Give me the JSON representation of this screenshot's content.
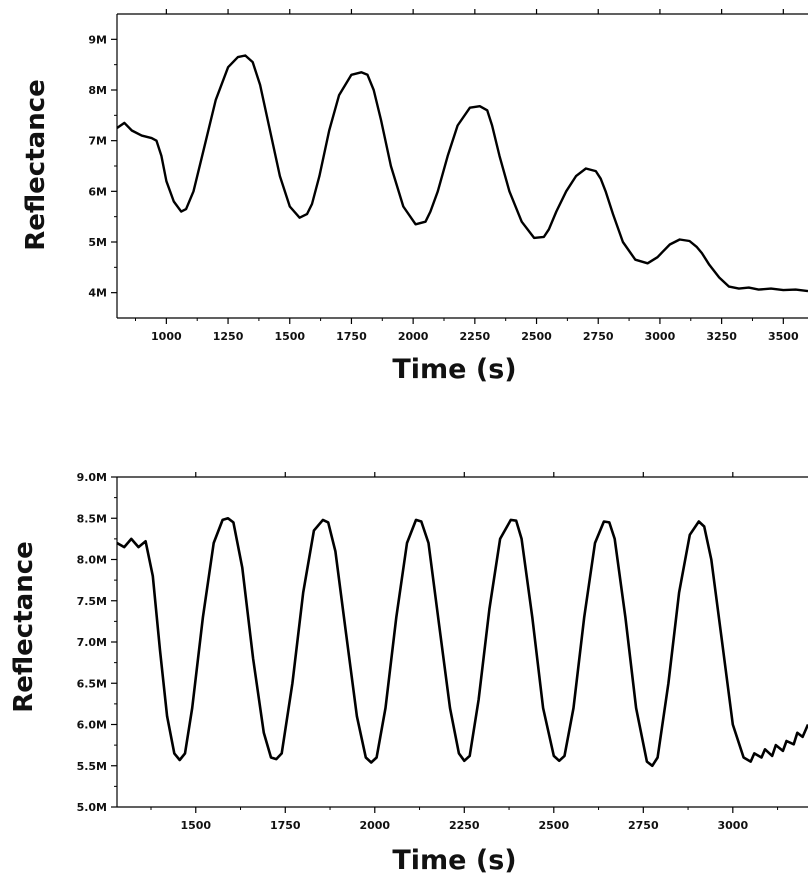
{
  "chart_data": [
    {
      "type": "line",
      "title": "",
      "xlabel": "Time (s)",
      "ylabel": "Reflectance",
      "xlim": [
        800,
        3600
      ],
      "ylim": [
        3500000,
        9500000
      ],
      "x_ticks": [
        1000,
        1250,
        1500,
        1750,
        2000,
        2250,
        2500,
        2750,
        3000,
        3250,
        3500
      ],
      "x_tick_labels": [
        "1000",
        "1250",
        "1500",
        "1750",
        "2000",
        "2250",
        "2500",
        "2750",
        "3000",
        "3250",
        "3500"
      ],
      "y_ticks": [
        4000000,
        5000000,
        6000000,
        7000000,
        8000000,
        9000000
      ],
      "y_tick_labels": [
        "4M",
        "5M",
        "6M",
        "7M",
        "8M",
        "9M"
      ],
      "grid": false,
      "series": [
        {
          "x": [
            800,
            830,
            860,
            900,
            940,
            960,
            980,
            1000,
            1030,
            1060,
            1080,
            1110,
            1150,
            1200,
            1250,
            1290,
            1320,
            1350,
            1380,
            1420,
            1460,
            1500,
            1540,
            1570,
            1590,
            1620,
            1660,
            1700,
            1750,
            1790,
            1815,
            1840,
            1870,
            1910,
            1960,
            2010,
            2050,
            2070,
            2100,
            2140,
            2180,
            2230,
            2270,
            2300,
            2320,
            2350,
            2390,
            2440,
            2490,
            2530,
            2550,
            2580,
            2620,
            2660,
            2700,
            2740,
            2760,
            2780,
            2810,
            2850,
            2900,
            2950,
            2990,
            3010,
            3040,
            3080,
            3120,
            3150,
            3170,
            3200,
            3240,
            3280,
            3320,
            3360,
            3400,
            3450,
            3500,
            3550,
            3600
          ],
          "y": [
            7250000,
            7350000,
            7200000,
            7100000,
            7050000,
            7000000,
            6700000,
            6200000,
            5800000,
            5600000,
            5650000,
            6000000,
            6800000,
            7800000,
            8450000,
            8650000,
            8680000,
            8550000,
            8100000,
            7200000,
            6300000,
            5700000,
            5480000,
            5550000,
            5750000,
            6300000,
            7200000,
            7900000,
            8300000,
            8350000,
            8300000,
            8000000,
            7400000,
            6500000,
            5700000,
            5350000,
            5400000,
            5600000,
            6000000,
            6700000,
            7300000,
            7650000,
            7680000,
            7600000,
            7300000,
            6700000,
            6000000,
            5400000,
            5080000,
            5100000,
            5250000,
            5600000,
            6000000,
            6300000,
            6450000,
            6400000,
            6250000,
            6000000,
            5550000,
            5000000,
            4650000,
            4580000,
            4700000,
            4800000,
            4950000,
            5050000,
            5020000,
            4900000,
            4780000,
            4550000,
            4300000,
            4120000,
            4080000,
            4100000,
            4060000,
            4080000,
            4050000,
            4060000,
            4030000
          ]
        }
      ]
    },
    {
      "type": "line",
      "title": "",
      "xlabel": "Time (s)",
      "ylabel": "Reflectance",
      "xlim": [
        1280,
        3210
      ],
      "ylim": [
        5000000,
        9000000
      ],
      "x_ticks": [
        1500,
        1750,
        2000,
        2250,
        2500,
        2750,
        3000
      ],
      "x_tick_labels": [
        "1500",
        "1750",
        "2000",
        "2250",
        "2500",
        "2750",
        "3000"
      ],
      "y_ticks": [
        5000000,
        5500000,
        6000000,
        6500000,
        7000000,
        7500000,
        8000000,
        8500000,
        9000000
      ],
      "y_tick_labels": [
        "5.0M",
        "5.5M",
        "6.0M",
        "6.5M",
        "7.0M",
        "7.5M",
        "8.0M",
        "8.5M",
        "9.0M"
      ],
      "grid": false,
      "series": [
        {
          "x": [
            1280,
            1300,
            1320,
            1340,
            1360,
            1380,
            1400,
            1420,
            1440,
            1455,
            1470,
            1490,
            1520,
            1550,
            1575,
            1590,
            1605,
            1630,
            1660,
            1690,
            1710,
            1725,
            1740,
            1770,
            1800,
            1830,
            1855,
            1870,
            1890,
            1920,
            1950,
            1975,
            1990,
            2005,
            2030,
            2060,
            2090,
            2115,
            2130,
            2150,
            2180,
            2210,
            2235,
            2250,
            2265,
            2290,
            2320,
            2350,
            2380,
            2395,
            2410,
            2440,
            2470,
            2500,
            2515,
            2530,
            2555,
            2585,
            2615,
            2640,
            2655,
            2670,
            2700,
            2730,
            2760,
            2775,
            2790,
            2820,
            2850,
            2880,
            2905,
            2920,
            2940,
            2970,
            3000,
            3030,
            3050,
            3060,
            3080,
            3090,
            3110,
            3120,
            3140,
            3150,
            3170,
            3180,
            3195,
            3210
          ],
          "y": [
            8200000,
            8150000,
            8250000,
            8150000,
            8220000,
            7800000,
            6900000,
            6100000,
            5650000,
            5570000,
            5650000,
            6200000,
            7300000,
            8200000,
            8480000,
            8500000,
            8450000,
            7900000,
            6800000,
            5900000,
            5600000,
            5580000,
            5650000,
            6500000,
            7600000,
            8350000,
            8480000,
            8450000,
            8100000,
            7100000,
            6100000,
            5600000,
            5540000,
            5600000,
            6200000,
            7300000,
            8200000,
            8480000,
            8460000,
            8200000,
            7200000,
            6200000,
            5650000,
            5560000,
            5620000,
            6300000,
            7400000,
            8250000,
            8480000,
            8470000,
            8250000,
            7300000,
            6200000,
            5620000,
            5560000,
            5620000,
            6200000,
            7300000,
            8200000,
            8460000,
            8450000,
            8250000,
            7300000,
            6200000,
            5550000,
            5500000,
            5600000,
            6500000,
            7600000,
            8300000,
            8460000,
            8400000,
            8000000,
            7000000,
            6000000,
            5600000,
            5550000,
            5650000,
            5600000,
            5700000,
            5620000,
            5750000,
            5680000,
            5800000,
            5760000,
            5900000,
            5850000,
            6000000
          ]
        }
      ]
    }
  ]
}
